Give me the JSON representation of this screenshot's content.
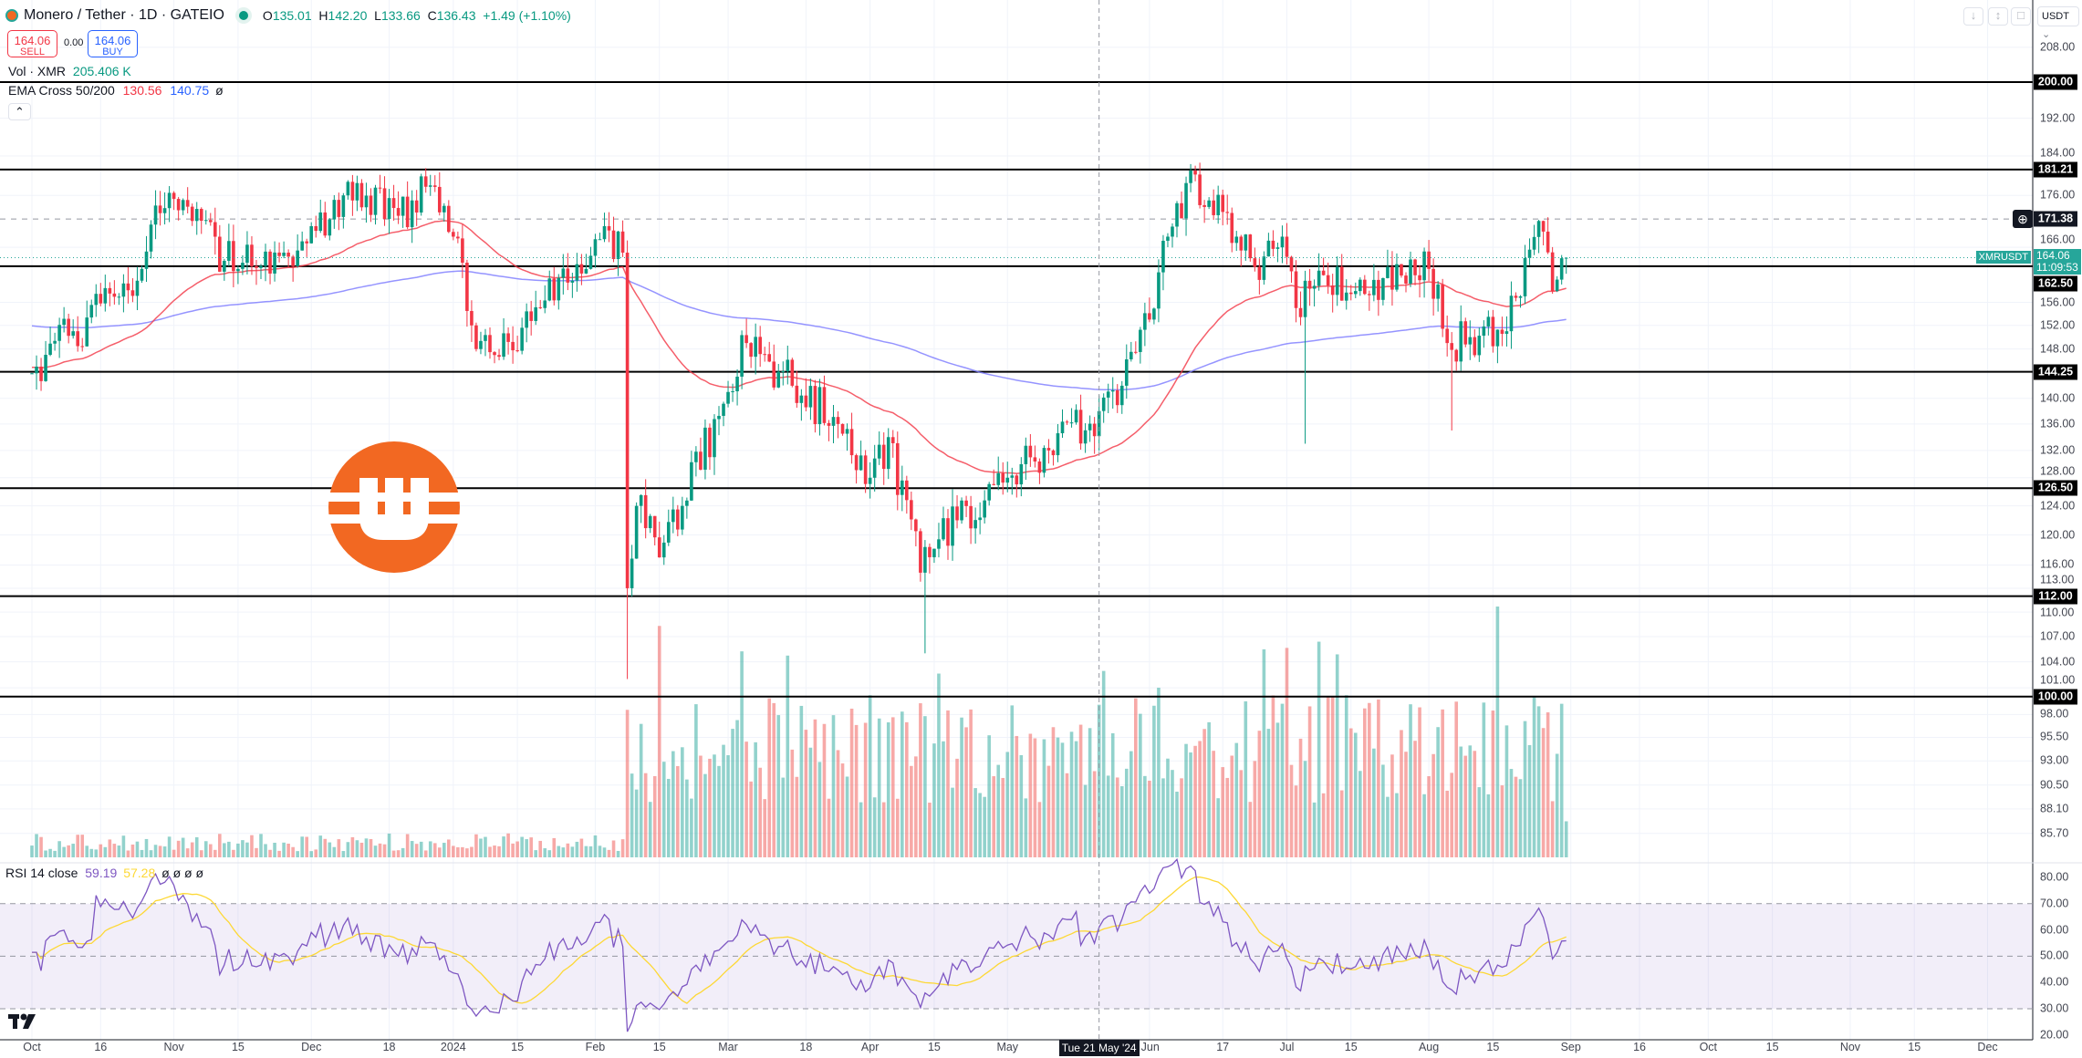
{
  "header": {
    "symbol": "Monero / Tether · 1D · GATEIO",
    "o_label": "O",
    "o": "135.01",
    "h_label": "H",
    "h": "142.20",
    "l_label": "L",
    "l": "133.66",
    "c_label": "C",
    "c": "136.43",
    "change": "+1.49 (+1.10%)",
    "sell_price": "164.06",
    "sell_label": "SELL",
    "spread": "0.00",
    "buy_price": "164.06",
    "buy_label": "BUY",
    "vol_label": "Vol · XMR",
    "vol_value": "205.406 K",
    "ema_label": "EMA Cross 50/200",
    "ema50": "130.56",
    "ema200": "140.75",
    "ema_extra": "ø",
    "rsi_label": "RSI 14 close",
    "rsi_value": "59.19",
    "rsi_ma": "57.28",
    "rsi_extra": "ø ø ø ø",
    "currency": "USDT"
  },
  "colors": {
    "up": "#089981",
    "down": "#f23645",
    "ema50": "#f23645",
    "ema200": "#7b79ff",
    "rsi": "#7e57c2",
    "rsi_ma": "#fdd835",
    "logo": "#f26822"
  },
  "chart_data": {
    "type": "candlestick",
    "title": "Monero / Tether · 1D · GATEIO",
    "start": "2023-10-01",
    "end": "2024-08-31",
    "scale": "log",
    "keypoints": [
      [
        "2023-10-01",
        144
      ],
      [
        "2023-10-10",
        151
      ],
      [
        "2023-10-20",
        157
      ],
      [
        "2023-10-25",
        162
      ],
      [
        "2023-10-28",
        174
      ],
      [
        "2023-11-05",
        171
      ],
      [
        "2023-11-15",
        162
      ],
      [
        "2023-11-25",
        165
      ],
      [
        "2023-12-01",
        170
      ],
      [
        "2023-12-10",
        175
      ],
      [
        "2023-12-20",
        172
      ],
      [
        "2023-12-27",
        178
      ],
      [
        "2024-01-01",
        168
      ],
      [
        "2024-01-05",
        152
      ],
      [
        "2024-01-10",
        147
      ],
      [
        "2024-01-20",
        155
      ],
      [
        "2024-01-30",
        162
      ],
      [
        "2024-02-03",
        170
      ],
      [
        "2024-02-07",
        165
      ],
      [
        "2024-02-08",
        113
      ],
      [
        "2024-02-10",
        124
      ],
      [
        "2024-02-15",
        117
      ],
      [
        "2024-02-20",
        124
      ],
      [
        "2024-03-01",
        141
      ],
      [
        "2024-03-05",
        149
      ],
      [
        "2024-03-15",
        142
      ],
      [
        "2024-03-25",
        136
      ],
      [
        "2024-04-01",
        128
      ],
      [
        "2024-04-05",
        134
      ],
      [
        "2024-04-12",
        115
      ],
      [
        "2024-04-20",
        122
      ],
      [
        "2024-05-01",
        128
      ],
      [
        "2024-05-10",
        132
      ],
      [
        "2024-05-21",
        138
      ],
      [
        "2024-05-26",
        142
      ],
      [
        "2024-06-01",
        153
      ],
      [
        "2024-06-05",
        168
      ],
      [
        "2024-06-10",
        181
      ],
      [
        "2024-06-14",
        175
      ],
      [
        "2024-06-20",
        168
      ],
      [
        "2024-06-25",
        160
      ],
      [
        "2024-06-30",
        168
      ],
      [
        "2024-07-03",
        155
      ],
      [
        "2024-07-10",
        159
      ],
      [
        "2024-07-20",
        160
      ],
      [
        "2024-08-01",
        162
      ],
      [
        "2024-08-05",
        149
      ],
      [
        "2024-08-10",
        150
      ],
      [
        "2024-08-18",
        151
      ],
      [
        "2024-08-22",
        164
      ],
      [
        "2024-08-25",
        171
      ],
      [
        "2024-08-28",
        158
      ],
      [
        "2024-08-31",
        164.06
      ]
    ],
    "wick_extremes": [
      [
        "2024-02-08",
        "low",
        102
      ],
      [
        "2024-04-13",
        "low",
        105
      ],
      [
        "2024-07-05",
        "low",
        133
      ],
      [
        "2024-08-06",
        "low",
        135
      ],
      [
        "2024-06-11",
        "high",
        182
      ]
    ],
    "horizontal_levels": [
      "200.00",
      "181.21",
      "162.50",
      "144.25",
      "126.50",
      "112.00",
      "100.00"
    ],
    "alert_level": "171.38",
    "price_axis": [
      "208.00",
      "192.00",
      "184.00",
      "176.00",
      "166.00",
      "156.00",
      "152.00",
      "148.00",
      "140.00",
      "136.00",
      "132.00",
      "128.00",
      "124.00",
      "120.00",
      "116.00",
      "113.00",
      "110.00",
      "107.00",
      "104.00",
      "101.00",
      "98.00",
      "95.50",
      "93.00",
      "90.50",
      "88.10",
      "85.70"
    ],
    "last_price": {
      "symbol": "XMRUSDT",
      "price": "164.06",
      "countdown": "11:09:53"
    },
    "rsi_axis": [
      "80.00",
      "70.00",
      "60.00",
      "50.00",
      "40.00",
      "30.00",
      "20.00"
    ],
    "rsi_bands": [
      30,
      50,
      70
    ],
    "time_axis": [
      [
        "Oct",
        "2023-10-01"
      ],
      [
        "16",
        "2023-10-16"
      ],
      [
        "Nov",
        "2023-11-01"
      ],
      [
        "15",
        "2023-11-15"
      ],
      [
        "Dec",
        "2023-12-01"
      ],
      [
        "18",
        "2023-12-18"
      ],
      [
        "2024",
        "2024-01-01"
      ],
      [
        "15",
        "2024-01-15"
      ],
      [
        "Feb",
        "2024-02-01"
      ],
      [
        "15",
        "2024-02-15"
      ],
      [
        "Mar",
        "2024-03-01"
      ],
      [
        "18",
        "2024-03-18"
      ],
      [
        "Apr",
        "2024-04-01"
      ],
      [
        "15",
        "2024-04-15"
      ],
      [
        "May",
        "2024-05-01"
      ],
      [
        "Jun",
        "2024-06-01"
      ],
      [
        "17",
        "2024-06-17"
      ],
      [
        "Jul",
        "2024-07-01"
      ],
      [
        "15",
        "2024-07-15"
      ],
      [
        "Aug",
        "2024-08-01"
      ],
      [
        "15",
        "2024-08-15"
      ],
      [
        "Sep",
        "2024-09-01"
      ],
      [
        "16",
        "2024-09-16"
      ],
      [
        "Oct",
        "2024-10-01"
      ],
      [
        "15",
        "2024-10-15"
      ],
      [
        "Nov",
        "2024-11-01"
      ],
      [
        "15",
        "2024-11-15"
      ],
      [
        "Dec",
        "2024-12-01"
      ]
    ],
    "crosshair": {
      "date": "2024-05-21",
      "label": "Tue 21 May '24"
    }
  }
}
